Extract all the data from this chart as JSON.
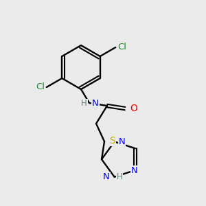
{
  "background_color": "#ebebeb",
  "atom_colors": {
    "C": "#000000",
    "N": "#0000ee",
    "O": "#ee0000",
    "S": "#bbaa00",
    "H": "#558877",
    "Cl": "#228833"
  },
  "figsize": [
    3.0,
    3.0
  ],
  "dpi": 100
}
